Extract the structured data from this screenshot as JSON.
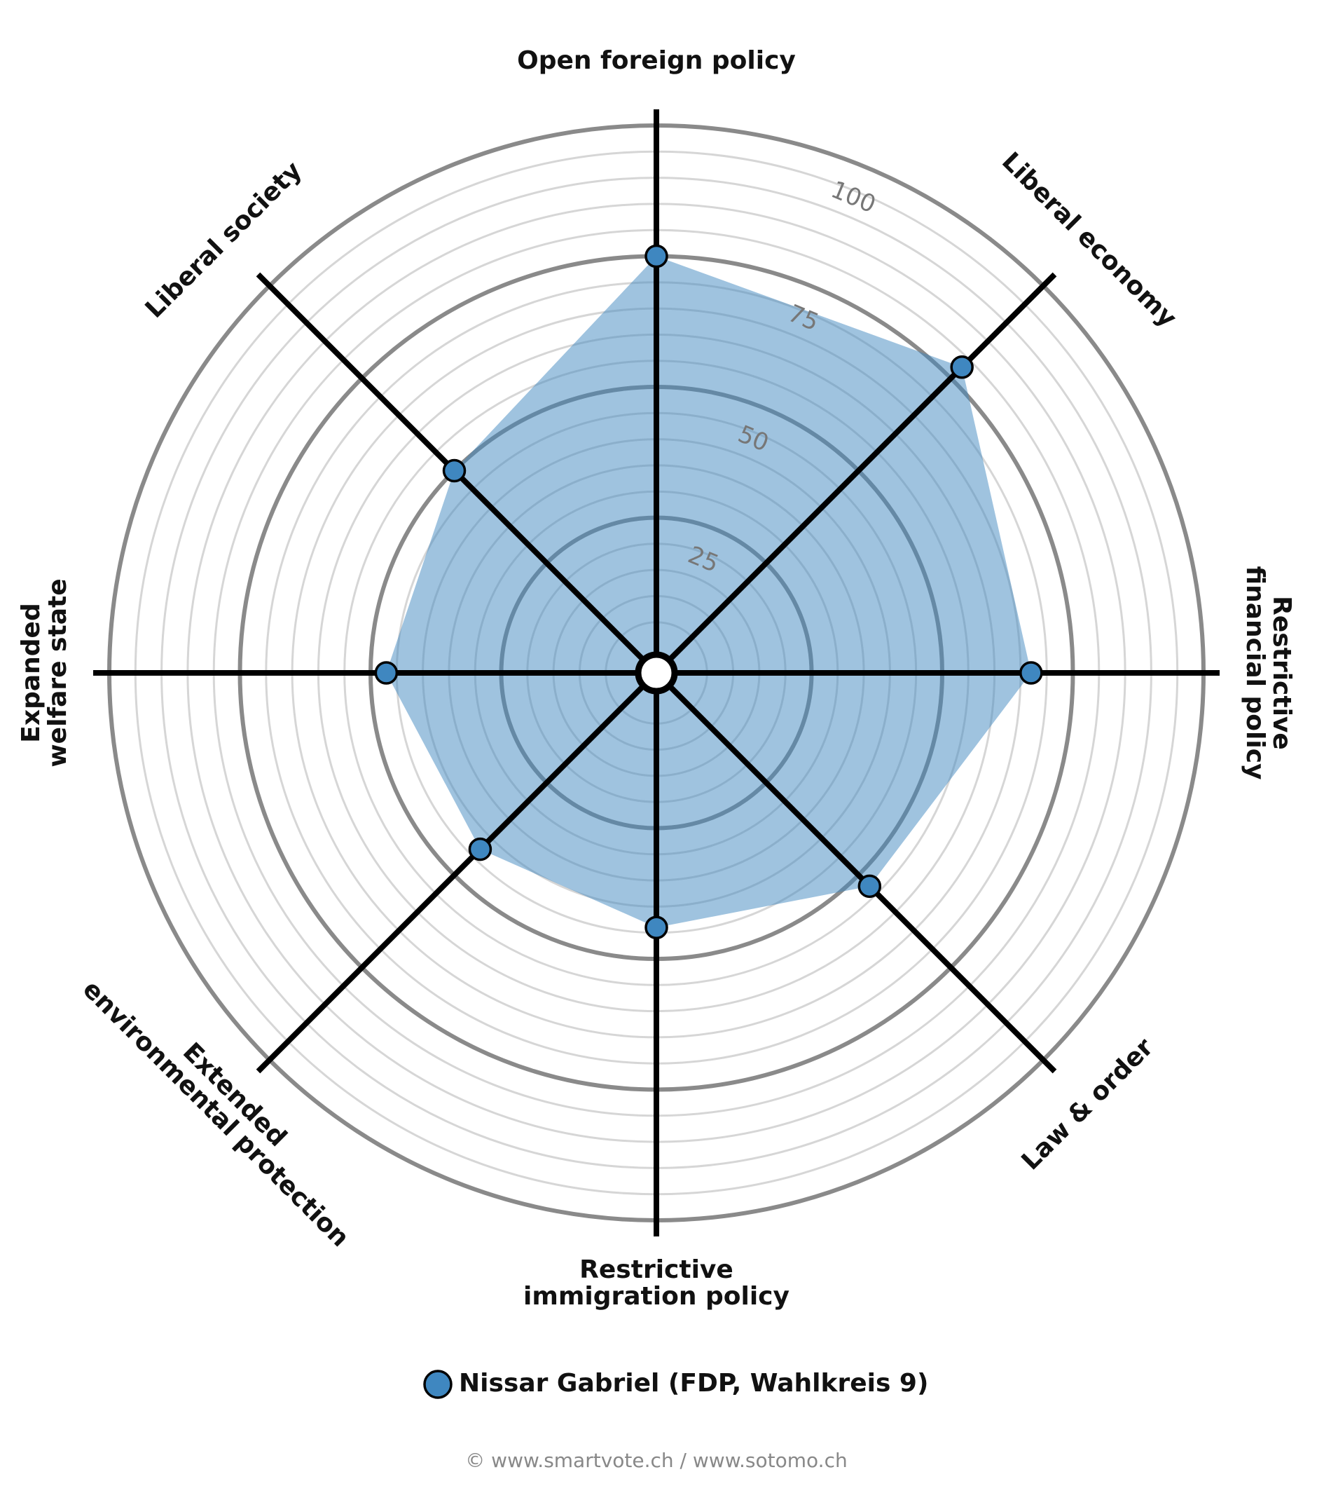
{
  "chart_data": {
    "type": "radar",
    "categories": [
      [
        "Open foreign policy"
      ],
      [
        "Liberal economy"
      ],
      [
        "Restrictive",
        "financial policy"
      ],
      [
        "Law & order"
      ],
      [
        "Restrictive",
        "immigration policy"
      ],
      [
        "Extended",
        "environmental protection"
      ],
      [
        "Expanded",
        "welfare state"
      ],
      [
        "Liberal society"
      ]
    ],
    "series": [
      {
        "name": "Nissar Gabriel (FDP, Wahlkreis 9)",
        "color": "#3f87c0",
        "values": [
          75,
          78,
          67,
          53,
          44,
          43,
          47,
          50
        ]
      }
    ],
    "rlim": [
      0,
      100
    ],
    "rticks": [
      25,
      50,
      75,
      100
    ],
    "minor_rticks": [
      5,
      10,
      15,
      20,
      30,
      35,
      40,
      45,
      55,
      60,
      65,
      70,
      80,
      85,
      90,
      95
    ],
    "footer": "© www.smartvote.ch / www.sotomo.ch"
  }
}
